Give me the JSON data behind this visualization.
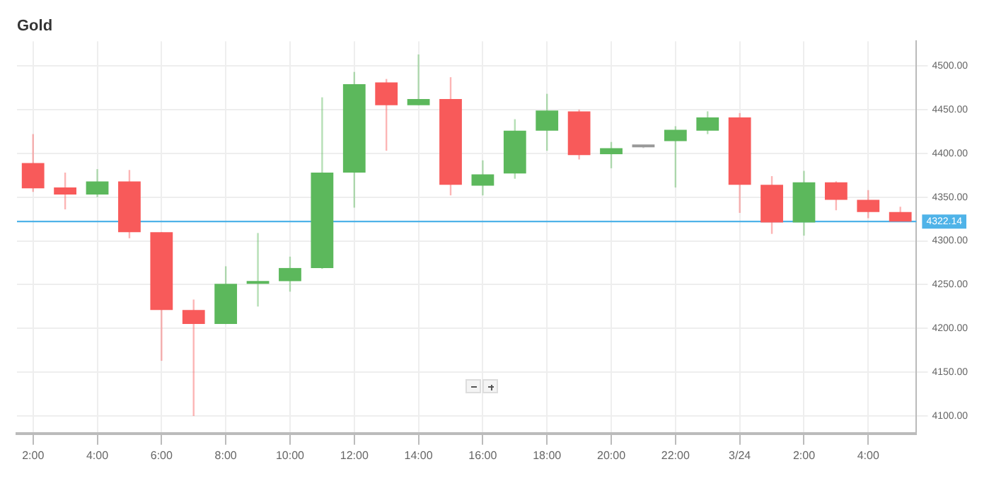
{
  "chart_data": {
    "type": "candlestick",
    "title": "Gold",
    "categories": [
      "2:00",
      null,
      "4:00",
      null,
      "6:00",
      null,
      "8:00",
      null,
      "10:00",
      null,
      "12:00",
      null,
      "14:00",
      null,
      "16:00",
      null,
      "18:00",
      null,
      "20:00",
      null,
      "22:00",
      null,
      "3/24",
      null,
      "2:00",
      null,
      "4:00",
      null
    ],
    "ohlc": [
      [
        4389,
        4422,
        4356,
        4360
      ],
      [
        4361,
        4378,
        4336,
        4353
      ],
      [
        4353,
        4382,
        4350,
        4368
      ],
      [
        4368,
        4381,
        4303,
        4310
      ],
      [
        4310,
        4310,
        4163,
        4221
      ],
      [
        4221,
        4233,
        4100,
        4205
      ],
      [
        4205,
        4271,
        4205,
        4251
      ],
      [
        4251,
        4309,
        4225,
        4254
      ],
      [
        4254,
        4282,
        4242,
        4269
      ],
      [
        4269,
        4464,
        4268,
        4378
      ],
      [
        4378,
        4493,
        4338,
        4479
      ],
      [
        4481,
        4485,
        4403,
        4455
      ],
      [
        4455,
        4513,
        4455,
        4462
      ],
      [
        4462,
        4487,
        4352,
        4364
      ],
      [
        4363,
        4392,
        4352,
        4376
      ],
      [
        4377,
        4439,
        4371,
        4426
      ],
      [
        4426,
        4468,
        4403,
        4449
      ],
      [
        4448,
        4450,
        4393,
        4398
      ],
      [
        4399,
        4413,
        4383,
        4406
      ],
      [
        4407,
        4408,
        4406,
        4408
      ],
      [
        4414,
        4431,
        4361,
        4427
      ],
      [
        4426,
        4448,
        4422,
        4441
      ],
      [
        4441,
        4446,
        4332,
        4364
      ],
      [
        4364,
        4374,
        4308,
        4321
      ],
      [
        4321,
        4380,
        4306,
        4367
      ],
      [
        4367,
        4368,
        4335,
        4347
      ],
      [
        4347,
        4358,
        4326,
        4333
      ],
      [
        4333,
        4339,
        4322,
        4322
      ]
    ],
    "colors": [
      "#f85a5a",
      "#f85a5a",
      "#5cb85c",
      "#f85a5a",
      "#f85a5a",
      "#f85a5a",
      "#5cb85c",
      "#5cb85c",
      "#5cb85c",
      "#5cb85c",
      "#5cb85c",
      "#f85a5a",
      "#5cb85c",
      "#f85a5a",
      "#5cb85c",
      "#5cb85c",
      "#5cb85c",
      "#f85a5a",
      "#5cb85c",
      "#999999",
      "#5cb85c",
      "#5cb85c",
      "#f85a5a",
      "#f85a5a",
      "#5cb85c",
      "#f85a5a",
      "#f85a5a",
      "#f85a5a"
    ],
    "ylim": [
      4080,
      4528
    ],
    "yticks": [
      {
        "value": 4100,
        "label": "4100.00"
      },
      {
        "value": 4150,
        "label": "4150.00"
      },
      {
        "value": 4200,
        "label": "4200.00"
      },
      {
        "value": 4250,
        "label": "4250.00"
      },
      {
        "value": 4300,
        "label": "4300.00"
      },
      {
        "value": 4350,
        "label": "4350.00"
      },
      {
        "value": 4400,
        "label": "4400.00"
      },
      {
        "value": 4450,
        "label": "4450.00"
      },
      {
        "value": 4500,
        "label": "4500.00"
      }
    ],
    "grid": true,
    "ref_lines": [
      {
        "axis": "y",
        "value": 4322.14,
        "label": "4322.14",
        "color": "#4fb3e8"
      }
    ]
  }
}
